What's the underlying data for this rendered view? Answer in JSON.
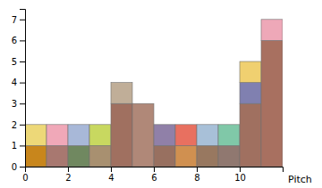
{
  "chart_data": {
    "type": "histogram",
    "stacked": true,
    "xlabel": "Pitch",
    "bins": [
      0,
      1,
      2,
      3,
      4,
      5,
      6,
      7,
      8,
      9,
      10,
      11,
      12
    ],
    "series": [
      {
        "values": [
          1,
          1,
          1,
          1,
          3,
          3,
          1,
          1,
          1,
          1,
          3,
          6
        ],
        "colors": [
          "#C8861C",
          "#A87870",
          "#708860",
          "#A89070",
          "#A07060",
          "#B08878",
          "#987060",
          "#D09050",
          "#987860",
          "#907870",
          "#A07060",
          "#A87060"
        ]
      },
      {
        "values": [
          1,
          1,
          1,
          1,
          1,
          null,
          1,
          1,
          1,
          1,
          1,
          1
        ],
        "colors": [
          "#EDD878",
          "#F0A8B8",
          "#A8B8D8",
          "#C8D860",
          "#C0AE98",
          null,
          "#9080A8",
          "#E87060",
          "#A8C0D8",
          "#80C8A8",
          "#8080B0",
          "#EEA8B8"
        ]
      },
      {
        "values": [
          null,
          null,
          null,
          null,
          null,
          null,
          null,
          null,
          null,
          null,
          1,
          null
        ],
        "colors": [
          null,
          null,
          null,
          null,
          null,
          null,
          null,
          null,
          null,
          null,
          "#F0D070",
          null
        ]
      }
    ],
    "xlim": [
      0,
      12
    ],
    "ylim": [
      0,
      7.5
    ],
    "xticks": [
      0,
      2,
      4,
      6,
      8,
      10
    ],
    "yticks": [
      0,
      1,
      2,
      3,
      4,
      5,
      6,
      7
    ]
  }
}
